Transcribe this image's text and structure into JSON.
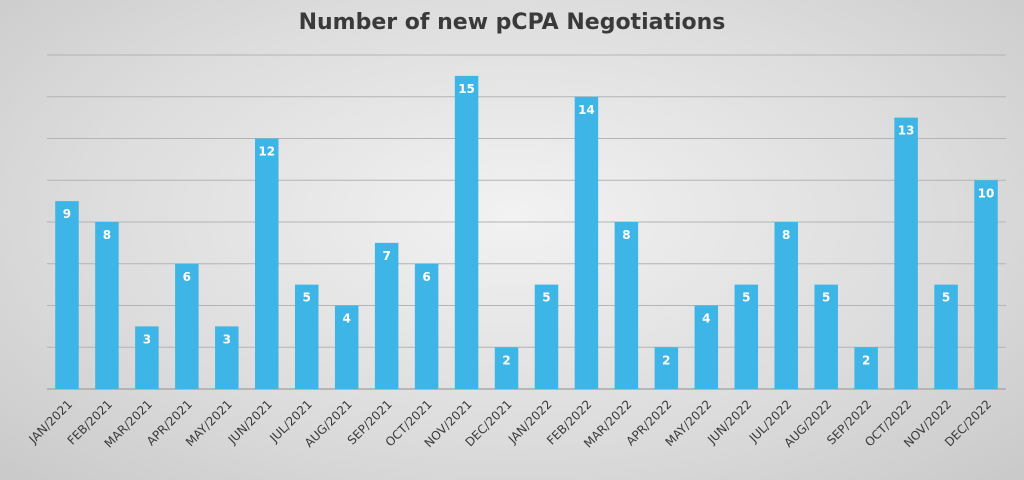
{
  "chart_data": {
    "type": "bar",
    "title": "Number of new pCPA Negotiations",
    "categories": [
      "JAN/2021",
      "FEB/2021",
      "MAR/2021",
      "APR/2021",
      "MAY/2021",
      "JUN/2021",
      "JUL/2021",
      "AUG/2021",
      "SEP/2021",
      "OCT/2021",
      "NOV/2021",
      "DEC/2021",
      "JAN/2022",
      "FEB/2022",
      "MAR/2022",
      "APR/2022",
      "MAY/2022",
      "JUN/2022",
      "JUL/2022",
      "AUG/2022",
      "SEP/2022",
      "OCT/2022",
      "NOV/2022",
      "DEC/2022"
    ],
    "values": [
      9,
      8,
      3,
      6,
      3,
      12,
      5,
      4,
      7,
      6,
      15,
      2,
      5,
      14,
      8,
      2,
      4,
      5,
      8,
      5,
      2,
      13,
      5,
      10
    ],
    "ylim": [
      0,
      16
    ],
    "grid": true,
    "bar_color": "#3db5e6"
  }
}
